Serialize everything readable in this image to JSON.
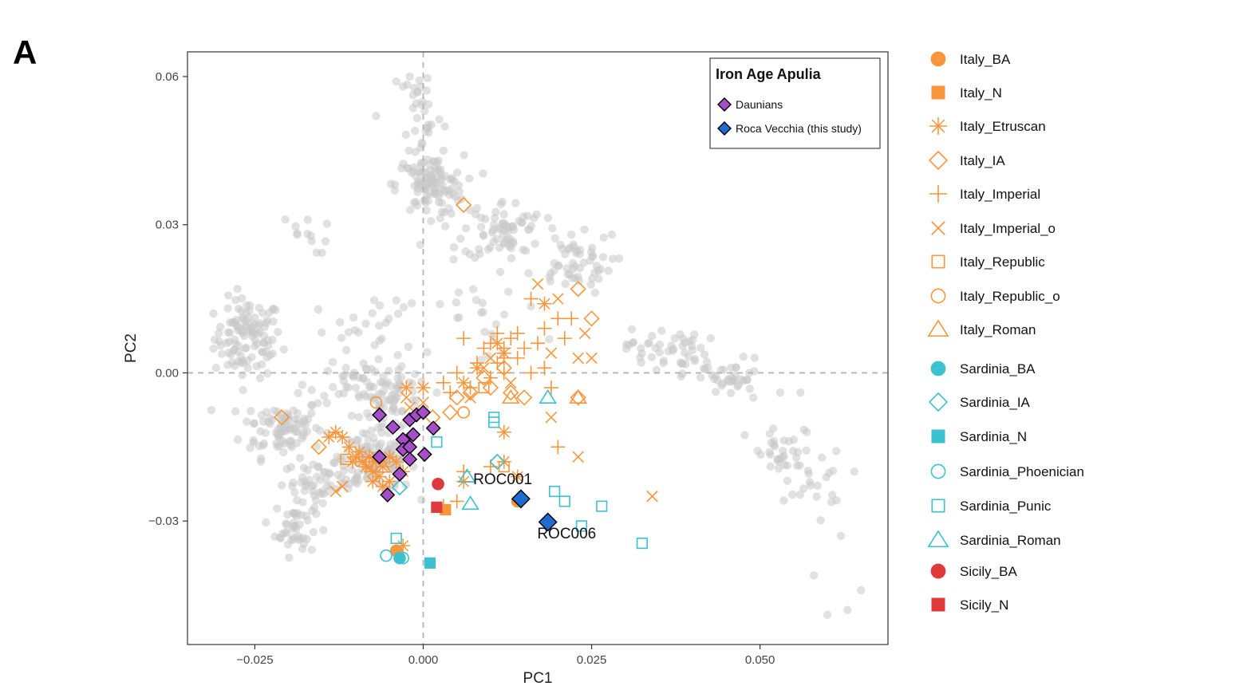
{
  "panel_label": "A",
  "chart_data": {
    "type": "scatter",
    "xlabel": "PC1",
    "ylabel": "PC2",
    "xlim": [
      -0.035,
      0.069
    ],
    "ylim": [
      -0.055,
      0.065
    ],
    "x_ticks": [
      -0.025,
      0.0,
      0.025,
      0.05
    ],
    "x_tick_labels": [
      "−0.025",
      "0.000",
      "0.025",
      "0.050"
    ],
    "y_ticks": [
      -0.03,
      0.0,
      0.03,
      0.06
    ],
    "y_tick_labels": [
      "−0.03",
      "0.00",
      "0.03",
      "0.06"
    ],
    "reference_lines": {
      "x": 0,
      "y": 0,
      "style": "dashed"
    },
    "grid": false,
    "background_clusters": {
      "color": "#c8c8c8",
      "clusters": [
        {
          "cx": -0.026,
          "cy": 0.007,
          "sx": 0.0025,
          "sy": 0.004,
          "n": 110
        },
        {
          "cx": -0.021,
          "cy": -0.011,
          "sx": 0.003,
          "sy": 0.003,
          "n": 90
        },
        {
          "cx": -0.019,
          "cy": -0.031,
          "sx": 0.0015,
          "sy": 0.003,
          "n": 45
        },
        {
          "cx": -0.015,
          "cy": -0.022,
          "sx": 0.003,
          "sy": 0.002,
          "n": 50
        },
        {
          "cx": -0.007,
          "cy": -0.018,
          "sx": 0.003,
          "sy": 0.003,
          "n": 120
        },
        {
          "cx": -0.004,
          "cy": -0.006,
          "sx": 0.0025,
          "sy": 0.003,
          "n": 60
        },
        {
          "cx": -0.009,
          "cy": -0.002,
          "sx": 0.004,
          "sy": 0.002,
          "n": 40
        },
        {
          "cx": 0.001,
          "cy": 0.038,
          "sx": 0.0025,
          "sy": 0.003,
          "n": 110
        },
        {
          "cx": 0.0,
          "cy": 0.053,
          "sx": 0.0015,
          "sy": 0.005,
          "n": 30
        },
        {
          "cx": 0.012,
          "cy": 0.029,
          "sx": 0.003,
          "sy": 0.003,
          "n": 70
        },
        {
          "cx": 0.022,
          "cy": 0.022,
          "sx": 0.003,
          "sy": 0.003,
          "n": 50
        },
        {
          "cx": -0.018,
          "cy": 0.028,
          "sx": 0.002,
          "sy": 0.002,
          "n": 12
        },
        {
          "cx": 0.036,
          "cy": 0.005,
          "sx": 0.003,
          "sy": 0.002,
          "n": 45
        },
        {
          "cx": 0.045,
          "cy": -0.001,
          "sx": 0.003,
          "sy": 0.002,
          "n": 40
        },
        {
          "cx": 0.054,
          "cy": -0.017,
          "sx": 0.003,
          "sy": 0.003,
          "n": 35
        },
        {
          "cx": 0.058,
          "cy": -0.022,
          "sx": 0.002,
          "sy": 0.003,
          "n": 18
        },
        {
          "cx": -0.008,
          "cy": 0.008,
          "sx": 0.004,
          "sy": 0.004,
          "n": 30
        },
        {
          "cx": 0.008,
          "cy": 0.012,
          "sx": 0.005,
          "sy": 0.005,
          "n": 25
        }
      ],
      "extra_points": [
        [
          0.062,
          -0.033
        ],
        [
          0.065,
          -0.044
        ],
        [
          0.06,
          -0.049
        ],
        [
          0.063,
          -0.048
        ],
        [
          0.058,
          -0.041
        ],
        [
          0.064,
          -0.02
        ],
        [
          -0.007,
          0.052
        ],
        [
          -0.004,
          0.059
        ],
        [
          -0.003,
          0.058
        ],
        [
          -0.002,
          0.06
        ],
        [
          0.003,
          0.045
        ],
        [
          0.022,
          0.028
        ],
        [
          0.028,
          0.028
        ],
        [
          0.049,
          -0.005
        ],
        [
          0.053,
          -0.004
        ],
        [
          0.056,
          -0.004
        ]
      ]
    },
    "series": [
      {
        "name": "Italy_BA",
        "shape": "circle",
        "filled": true,
        "color": "#f7963d",
        "points": [
          [
            0.014,
            -0.026
          ],
          [
            -0.004,
            -0.036
          ]
        ]
      },
      {
        "name": "Italy_N",
        "shape": "square",
        "filled": true,
        "color": "#f7963d",
        "points": [
          [
            0.0033,
            -0.0277
          ]
        ]
      },
      {
        "name": "Italy_Etruscan",
        "shape": "star",
        "filled": false,
        "color": "#f7963d",
        "points": [
          [
            -0.014,
            -0.013
          ],
          [
            -0.013,
            -0.012
          ],
          [
            -0.012,
            -0.013
          ],
          [
            -0.011,
            -0.015
          ],
          [
            -0.01,
            -0.017
          ],
          [
            -0.009,
            -0.018
          ],
          [
            -0.0085,
            -0.019
          ],
          [
            -0.008,
            -0.017
          ],
          [
            -0.0075,
            -0.02
          ],
          [
            -0.007,
            -0.018
          ],
          [
            -0.0065,
            -0.021
          ],
          [
            -0.006,
            -0.019
          ],
          [
            -0.005,
            -0.017
          ],
          [
            -0.0095,
            -0.016
          ],
          [
            -0.0105,
            -0.018
          ],
          [
            -0.0075,
            -0.022
          ],
          [
            -0.006,
            -0.023
          ],
          [
            -0.005,
            -0.022
          ],
          [
            -0.004,
            -0.018
          ],
          [
            -0.003,
            -0.02
          ],
          [
            -0.0025,
            -0.003
          ],
          [
            0.0,
            -0.003
          ],
          [
            0.006,
            -0.022
          ],
          [
            0.012,
            -0.012
          ],
          [
            0.014,
            -0.021
          ],
          [
            0.012,
            0.004
          ],
          [
            0.011,
            0.006
          ],
          [
            0.018,
            0.014
          ],
          [
            0.006,
            -0.002
          ],
          [
            0.008,
            0.001
          ],
          [
            -0.003,
            -0.035
          ],
          [
            0.012,
            -0.018
          ]
        ]
      },
      {
        "name": "Italy_IA",
        "shape": "diamond",
        "filled": false,
        "color": "#f7963d",
        "points": [
          [
            -0.021,
            -0.009
          ],
          [
            0.006,
            0.034
          ],
          [
            0.023,
            0.017
          ],
          [
            0.025,
            0.011
          ],
          [
            0.009,
            -0.001
          ],
          [
            0.01,
            -0.003
          ],
          [
            0.012,
            0.001
          ],
          [
            0.007,
            -0.004
          ],
          [
            0.005,
            -0.005
          ],
          [
            0.004,
            -0.008
          ],
          [
            0.0014,
            -0.009
          ],
          [
            -0.0155,
            -0.015
          ],
          [
            0.013,
            -0.004
          ],
          [
            0.015,
            -0.005
          ],
          [
            0.023,
            -0.005
          ],
          [
            0.011,
            -0.018
          ]
        ]
      },
      {
        "name": "Italy_Imperial",
        "shape": "plus",
        "filled": false,
        "color": "#f7963d",
        "points": [
          [
            0.006,
            0.007
          ],
          [
            0.009,
            0.005
          ],
          [
            0.01,
            0.006
          ],
          [
            0.011,
            0.008
          ],
          [
            0.012,
            0.005
          ],
          [
            0.013,
            0.007
          ],
          [
            0.014,
            0.003
          ],
          [
            0.012,
            0.003
          ],
          [
            0.011,
            0.002
          ],
          [
            0.008,
            0.002
          ],
          [
            0.005,
            0.0
          ],
          [
            0.004,
            -0.004
          ],
          [
            0.007,
            -0.003
          ],
          [
            0.01,
            -0.001
          ],
          [
            0.012,
            0.0
          ],
          [
            0.016,
            0.0
          ],
          [
            0.018,
            0.001
          ],
          [
            0.019,
            -0.003
          ],
          [
            0.016,
            0.015
          ],
          [
            0.018,
            0.009
          ],
          [
            0.02,
            0.011
          ],
          [
            0.021,
            0.007
          ],
          [
            0.022,
            0.011
          ],
          [
            0.015,
            0.005
          ],
          [
            0.017,
            0.006
          ],
          [
            0.014,
            0.008
          ],
          [
            0.003,
            -0.002
          ],
          [
            0.006,
            -0.02
          ],
          [
            0.005,
            -0.026
          ],
          [
            0.02,
            -0.015
          ],
          [
            0.01,
            -0.019
          ],
          [
            0.003,
            -0.027
          ]
        ]
      },
      {
        "name": "Italy_Imperial_o",
        "shape": "cross",
        "filled": false,
        "color": "#f7963d",
        "points": [
          [
            0.017,
            0.018
          ],
          [
            0.02,
            0.015
          ],
          [
            0.024,
            0.008
          ],
          [
            0.023,
            0.003
          ],
          [
            0.025,
            0.003
          ],
          [
            0.019,
            0.004
          ],
          [
            0.01,
            0.003
          ],
          [
            0.019,
            -0.009
          ],
          [
            0.023,
            -0.017
          ],
          [
            0.034,
            -0.025
          ],
          [
            -0.012,
            -0.023
          ],
          [
            -0.013,
            -0.024
          ],
          [
            -0.008,
            -0.019
          ],
          [
            -0.007,
            -0.017
          ],
          [
            0.0,
            -0.006
          ],
          [
            0.013,
            -0.002
          ],
          [
            0.007,
            -0.005
          ],
          [
            -0.0025,
            -0.005
          ],
          [
            -0.002,
            -0.007
          ],
          [
            0.009,
            0.001
          ]
        ]
      },
      {
        "name": "Italy_Republic",
        "shape": "square",
        "filled": false,
        "color": "#f7963d",
        "points": [
          [
            -0.0115,
            -0.0175
          ],
          [
            0.012,
            -0.019
          ],
          [
            0.009,
            -0.003
          ]
        ]
      },
      {
        "name": "Italy_Republic_o",
        "shape": "circle",
        "filled": false,
        "color": "#f7963d",
        "points": [
          [
            -0.007,
            -0.006
          ],
          [
            0.006,
            -0.008
          ],
          [
            0.014,
            -0.026
          ]
        ]
      },
      {
        "name": "Italy_Roman",
        "shape": "triangle",
        "filled": false,
        "color": "#f7963d",
        "points": [
          [
            0.013,
            -0.005
          ],
          [
            0.023,
            -0.005
          ],
          [
            -0.006,
            -0.019
          ]
        ]
      },
      {
        "name": "Sardinia_BA",
        "shape": "circle",
        "filled": true,
        "color": "#3cc1d0",
        "points": [
          [
            -0.0035,
            -0.0375
          ]
        ]
      },
      {
        "name": "Sardinia_IA",
        "shape": "diamond",
        "filled": false,
        "color": "#3cc1d0",
        "points": [
          [
            0.011,
            -0.018
          ],
          [
            -0.0035,
            -0.0232
          ]
        ]
      },
      {
        "name": "Sardinia_N",
        "shape": "square",
        "filled": true,
        "color": "#3cc1d0",
        "points": [
          [
            0.001,
            -0.0385
          ]
        ]
      },
      {
        "name": "Sardinia_Phoenician",
        "shape": "circle",
        "filled": false,
        "color": "#3cc1d0",
        "points": [
          [
            -0.0055,
            -0.037
          ],
          [
            -0.003,
            -0.0375
          ]
        ]
      },
      {
        "name": "Sardinia_Punic",
        "shape": "square",
        "filled": false,
        "color": "#3cc1d0",
        "points": [
          [
            0.0105,
            -0.009
          ],
          [
            0.0105,
            -0.01
          ],
          [
            0.002,
            -0.014
          ],
          [
            -0.004,
            -0.0335
          ],
          [
            0.0195,
            -0.024
          ],
          [
            0.021,
            -0.026
          ],
          [
            0.0265,
            -0.027
          ],
          [
            0.0235,
            -0.031
          ],
          [
            0.0325,
            -0.0345
          ]
        ]
      },
      {
        "name": "Sardinia_Roman",
        "shape": "triangle",
        "filled": false,
        "color": "#3cc1d0",
        "points": [
          [
            0.0065,
            -0.021
          ],
          [
            0.007,
            -0.0265
          ],
          [
            0.0185,
            -0.005
          ]
        ]
      },
      {
        "name": "Sicily_BA",
        "shape": "circle",
        "filled": true,
        "color": "#e0393c",
        "points": [
          [
            0.0022,
            -0.0225
          ]
        ]
      },
      {
        "name": "Sicily_N",
        "shape": "square",
        "filled": true,
        "color": "#e0393c",
        "points": [
          [
            0.002,
            -0.0272
          ]
        ]
      }
    ],
    "highlight_series": [
      {
        "name": "Daunians",
        "shape": "diamond",
        "filled": true,
        "color": "#a54ec8",
        "stroke": "#000000",
        "points": [
          [
            -0.0065,
            -0.0085
          ],
          [
            -0.0045,
            -0.011
          ],
          [
            -0.003,
            -0.0135
          ],
          [
            -0.002,
            -0.0095
          ],
          [
            -0.001,
            -0.0085
          ],
          [
            0.0,
            -0.008
          ],
          [
            -0.0015,
            -0.0125
          ],
          [
            -0.003,
            -0.0155
          ],
          [
            -0.002,
            -0.015
          ],
          [
            -0.002,
            -0.0175
          ],
          [
            -0.0065,
            -0.017
          ],
          [
            0.0015,
            -0.0112
          ],
          [
            0.0002,
            -0.0165
          ],
          [
            -0.0035,
            -0.0205
          ],
          [
            -0.0053,
            -0.0247
          ]
        ]
      },
      {
        "name": "Roca Vecchia (this study)",
        "shape": "diamond",
        "filled": true,
        "color": "#1f6bd0",
        "stroke": "#000000",
        "points": [
          [
            0.0145,
            -0.0255
          ],
          [
            0.0185,
            -0.0302
          ]
        ]
      }
    ],
    "annotations": [
      {
        "text": "ROC001",
        "x": 0.0118,
        "y": -0.0225
      },
      {
        "text": "ROC006",
        "x": 0.0213,
        "y": -0.0335
      }
    ],
    "inner_legend": {
      "title": "Iron Age Apulia",
      "placement": "top-right",
      "entries": [
        "Daunians",
        "Roca Vecchia (this study)"
      ]
    },
    "outer_legend": {
      "placement": "right",
      "entries": [
        "Italy_BA",
        "Italy_N",
        "Italy_Etruscan",
        "Italy_IA",
        "Italy_Imperial",
        "Italy_Imperial_o",
        "Italy_Republic",
        "Italy_Republic_o",
        "Italy_Roman",
        "Sardinia_BA",
        "Sardinia_IA",
        "Sardinia_N",
        "Sardinia_Phoenician",
        "Sardinia_Punic",
        "Sardinia_Roman",
        "Sicily_BA",
        "Sicily_N"
      ]
    }
  }
}
